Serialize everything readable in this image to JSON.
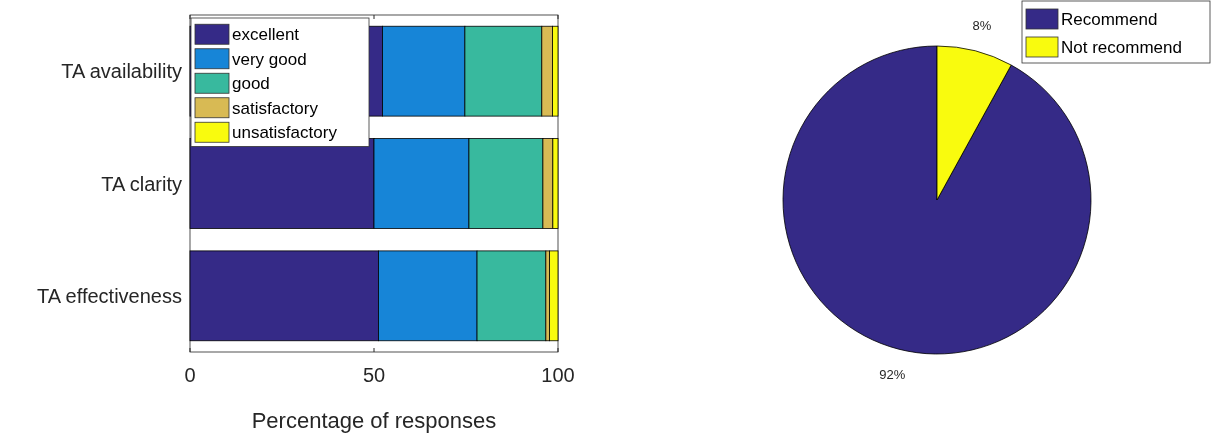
{
  "chart_data": [
    {
      "type": "bar",
      "orientation": "horizontal",
      "stacked": true,
      "xlabel": "Percentage of responses",
      "categories": [
        "TA availability",
        "TA clarity",
        "TA effectiveness"
      ],
      "xlim": [
        0,
        100
      ],
      "xticks": [
        0,
        50,
        100
      ],
      "legend": "top left",
      "series": [
        {
          "name": "excellent",
          "color": "#352a87",
          "values": [
            52.3,
            50.0,
            51.2
          ]
        },
        {
          "name": "very good",
          "color": "#1785d7",
          "values": [
            22.4,
            25.8,
            26.8
          ]
        },
        {
          "name": "good",
          "color": "#38b99e",
          "values": [
            20.9,
            20.1,
            18.7
          ]
        },
        {
          "name": "satisfactory",
          "color": "#d8ba54",
          "values": [
            2.9,
            2.7,
            1.0
          ]
        },
        {
          "name": "unsatisfactory",
          "color": "#f9fb0e",
          "values": [
            1.5,
            1.4,
            2.3
          ]
        }
      ]
    },
    {
      "type": "pie",
      "categories": [
        "Recommend",
        "Not recommend"
      ],
      "values": [
        92,
        8
      ],
      "colors": [
        "#352a87",
        "#f9fb0e"
      ],
      "value_labels": [
        "92%",
        "8%"
      ],
      "legend": "top right"
    }
  ]
}
